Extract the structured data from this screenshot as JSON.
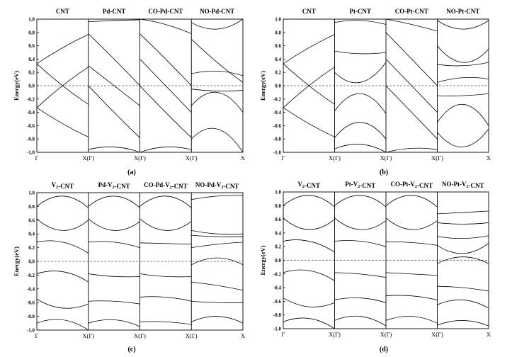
{
  "chart_data": [
    {
      "type": "line",
      "caption": "(a)",
      "ylabel": "Energy(eV)",
      "ylim": [
        -1.0,
        1.0
      ],
      "yticks": [
        "1.0",
        "0.8",
        "0.6",
        "0.4",
        "0.2",
        "0.0",
        "-0.2",
        "-0.4",
        "-0.6",
        "-0.8",
        "-1.0"
      ],
      "xticks": [
        "Γ",
        "X(Γ)",
        "X(Γ)",
        "X(Γ)",
        "X"
      ],
      "panels": [
        {
          "title": "CNT",
          "bands": [
            [
              0.33,
              0.57,
              0.77
            ],
            [
              0.33,
              0.0,
              -0.28
            ],
            [
              -0.33,
              0.0,
              0.28
            ],
            [
              -0.33,
              -0.57,
              -0.77
            ]
          ]
        },
        {
          "title": "Pd-CNT",
          "bands": [
            [
              0.96,
              0.98,
              0.99
            ],
            [
              0.78,
              0.4,
              0.0
            ],
            [
              0.0,
              -0.4,
              -0.78
            ],
            [
              0.3,
              0.0,
              -0.3
            ],
            [
              -0.96,
              -0.92,
              -1.0
            ]
          ]
        },
        {
          "title": "CO-Pd-CNT",
          "bands": [
            [
              1.0,
              0.92,
              0.78
            ],
            [
              0.78,
              0.4,
              0.0
            ],
            [
              0.0,
              -0.4,
              -0.78
            ],
            [
              0.4,
              0.0,
              -0.4
            ],
            [
              -1.0,
              -0.92,
              -0.96
            ]
          ]
        },
        {
          "title": "NO-Pd-CNT",
          "bands": [
            [
              0.95,
              0.85,
              1.0
            ],
            [
              0.7,
              0.35,
              0.05
            ],
            [
              0.18,
              0.22,
              0.15
            ],
            [
              -0.05,
              -0.08,
              -0.07
            ],
            [
              -0.3,
              -0.1,
              -0.4
            ],
            [
              -0.8,
              -0.65,
              -1.0
            ]
          ]
        }
      ]
    },
    {
      "type": "line",
      "caption": "(b)",
      "ylabel": "Energy(eV)",
      "ylim": [
        -1.0,
        1.0
      ],
      "yticks": [
        "1.0",
        "0.8",
        "0.6",
        "0.4",
        "0.2",
        "0.0",
        "-0.2",
        "-0.4",
        "-0.6",
        "-0.8",
        "-1.0"
      ],
      "xticks": [
        "Γ",
        "X(Γ)",
        "X(Γ)",
        "X(Γ)",
        "X"
      ],
      "panels": [
        {
          "title": "CNT",
          "bands": [
            [
              0.33,
              0.57,
              0.77
            ],
            [
              0.33,
              0.0,
              -0.28
            ],
            [
              -0.33,
              0.0,
              0.28
            ],
            [
              -0.33,
              -0.57,
              -0.77
            ]
          ]
        },
        {
          "title": "Pt-CNT",
          "bands": [
            [
              0.95,
              0.98,
              0.92
            ],
            [
              0.52,
              0.48,
              0.5
            ],
            [
              0.2,
              0.05,
              0.35
            ],
            [
              -0.38,
              -0.12,
              -0.42
            ],
            [
              -0.78,
              -0.55,
              -0.8
            ],
            [
              -0.95,
              -0.88,
              -1.0
            ]
          ]
        },
        {
          "title": "CO-Pt-CNT",
          "bands": [
            [
              1.0,
              0.92,
              0.82
            ],
            [
              0.8,
              0.4,
              0.0
            ],
            [
              0.0,
              -0.4,
              -0.8
            ],
            [
              0.4,
              0.0,
              -0.4
            ],
            [
              -1.0,
              -0.94,
              -0.96
            ]
          ]
        },
        {
          "title": "NO-Pt-CNT",
          "bands": [
            [
              0.98,
              0.85,
              0.98
            ],
            [
              0.6,
              0.35,
              0.55
            ],
            [
              0.32,
              0.3,
              0.35
            ],
            [
              0.05,
              0.12,
              0.1
            ],
            [
              -0.15,
              -0.15,
              -0.12
            ],
            [
              -0.55,
              -0.28,
              -0.6
            ],
            [
              -0.7,
              -0.92,
              -0.65
            ]
          ]
        }
      ]
    },
    {
      "type": "line",
      "caption": "(c)",
      "ylabel": "Energy(eV)",
      "ylim": [
        -1.0,
        1.0
      ],
      "yticks": [
        "1.0",
        "0.8",
        "0.6",
        "0.4",
        "0.2",
        "0.0",
        "-0.2",
        "-0.4",
        "-0.6",
        "-0.8",
        "-1.0"
      ],
      "xticks": [
        "Γ",
        "X(Γ)",
        "X(Γ)",
        "X(Γ)",
        "X"
      ],
      "panels": [
        {
          "title": "V2-CNT",
          "bands": [
            [
              0.8,
              0.95,
              0.78
            ],
            [
              0.62,
              0.45,
              0.6
            ],
            [
              0.28,
              0.28,
              0.12
            ],
            [
              -0.18,
              -0.15,
              -0.3
            ],
            [
              -0.55,
              -0.68,
              -0.62
            ],
            [
              -0.9,
              -0.85,
              -1.0
            ]
          ]
        },
        {
          "title": "Pd-V2-CNT",
          "bands": [
            [
              0.8,
              0.95,
              0.78
            ],
            [
              0.62,
              0.45,
              0.58
            ],
            [
              0.28,
              0.28,
              0.2
            ],
            [
              -0.18,
              -0.22,
              -0.22
            ],
            [
              -0.58,
              -0.58,
              -0.62
            ],
            [
              -0.9,
              -0.85,
              -0.95
            ]
          ]
        },
        {
          "title": "CO-Pd-V2-CNT",
          "bands": [
            [
              0.8,
              0.95,
              0.78
            ],
            [
              0.62,
              0.45,
              0.58
            ],
            [
              0.27,
              0.26,
              0.25
            ],
            [
              -0.18,
              -0.22,
              -0.22
            ],
            [
              -0.52,
              -0.52,
              -0.58
            ],
            [
              -0.88,
              -0.88,
              -0.92
            ]
          ]
        },
        {
          "title": "NO-Pd-V2-CNT",
          "bands": [
            [
              0.9,
              0.95,
              0.96
            ],
            [
              0.45,
              0.4,
              0.4
            ],
            [
              0.38,
              0.36,
              0.36
            ],
            [
              0.2,
              0.25,
              0.28
            ],
            [
              -0.05,
              0.05,
              -0.05
            ],
            [
              -0.3,
              -0.35,
              -0.42
            ],
            [
              -0.58,
              -0.6,
              -0.6
            ],
            [
              -0.88,
              -0.8,
              -0.9
            ]
          ]
        }
      ]
    },
    {
      "type": "line",
      "caption": "(d)",
      "ylabel": "Energy(eV)",
      "ylim": [
        -1.0,
        1.0
      ],
      "yticks": [
        "1.0",
        "0.8",
        "0.6",
        "0.4",
        "0.2",
        "0.0",
        "-0.2",
        "-0.4",
        "-0.6",
        "-0.8",
        "-1.0"
      ],
      "xticks": [
        "Γ",
        "X(Γ)",
        "X(Γ)",
        "X(Γ)",
        "X"
      ],
      "panels": [
        {
          "title": "V2-CNT",
          "bands": [
            [
              0.8,
              0.95,
              0.78
            ],
            [
              0.62,
              0.45,
              0.6
            ],
            [
              0.28,
              0.28,
              0.12
            ],
            [
              -0.18,
              -0.15,
              -0.3
            ],
            [
              -0.55,
              -0.68,
              -0.62
            ],
            [
              -0.9,
              -0.85,
              -1.0
            ]
          ]
        },
        {
          "title": "Pt-V2-CNT",
          "bands": [
            [
              0.8,
              0.95,
              0.78
            ],
            [
              0.62,
              0.45,
              0.58
            ],
            [
              0.28,
              0.28,
              0.2
            ],
            [
              -0.18,
              -0.2,
              -0.25
            ],
            [
              -0.58,
              -0.55,
              -0.62
            ],
            [
              -0.88,
              -0.82,
              -0.96
            ]
          ]
        },
        {
          "title": "CO-Pt-V2-CNT",
          "bands": [
            [
              0.8,
              0.95,
              0.78
            ],
            [
              0.62,
              0.45,
              0.58
            ],
            [
              0.27,
              0.26,
              0.22
            ],
            [
              -0.18,
              -0.2,
              -0.22
            ],
            [
              -0.52,
              -0.52,
              -0.58
            ],
            [
              -0.88,
              -0.82,
              -0.92
            ]
          ]
        },
        {
          "title": "NO-Pt-V2-CNT",
          "bands": [
            [
              0.68,
              0.7,
              0.72
            ],
            [
              0.55,
              0.53,
              0.55
            ],
            [
              0.35,
              0.32,
              0.36
            ],
            [
              0.22,
              0.1,
              0.25
            ],
            [
              -0.05,
              0.05,
              -0.05
            ],
            [
              -0.38,
              -0.4,
              -0.45
            ],
            [
              -0.65,
              -0.58,
              -0.7
            ],
            [
              -0.95,
              -0.88,
              -0.96
            ]
          ]
        }
      ]
    }
  ]
}
